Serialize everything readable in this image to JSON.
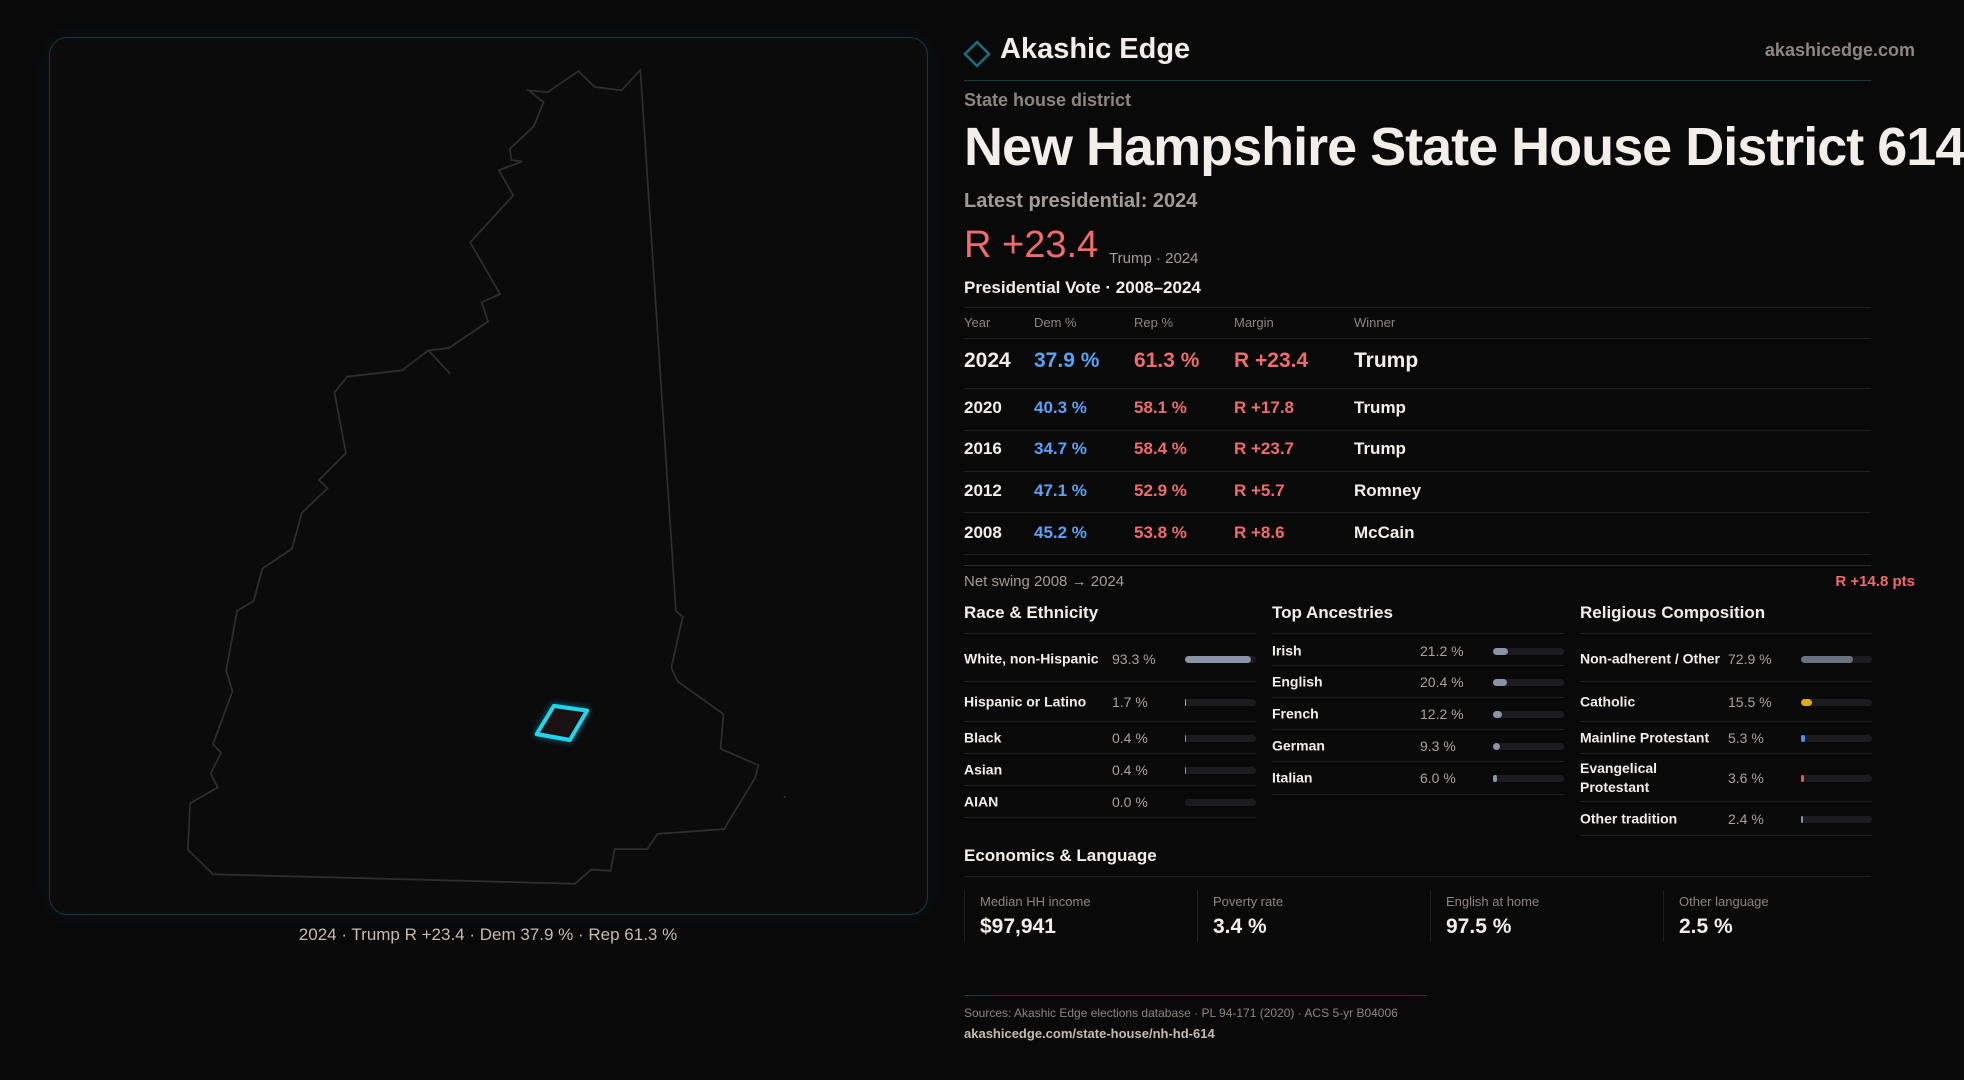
{
  "brand": {
    "name": "Akashic Edge",
    "site": "akashicedge.com",
    "accent": "#1fd6ee"
  },
  "header": {
    "kicker": "State house district",
    "title": "New Hampshire State House District 614",
    "latest_label": "Latest presidential: 2024",
    "margin": "R +23.4",
    "margin_note": "Trump · 2024"
  },
  "map": {
    "caption": "2024 · Trump R +23.4 · Dem 37.9 % · Rep 61.3 %",
    "highlight_color": "#1fd6ee"
  },
  "table": {
    "title": "Presidential Vote · 2008–2024",
    "headers": [
      "Year",
      "Dem %",
      "Rep %",
      "Margin",
      "Winner"
    ],
    "rows": [
      {
        "year": "2024",
        "dem": "37.9 %",
        "rep": "61.3 %",
        "margin": "R +23.4",
        "winner": "Trump"
      },
      {
        "year": "2020",
        "dem": "40.3 %",
        "rep": "58.1 %",
        "margin": "R +17.8",
        "winner": "Trump"
      },
      {
        "year": "2016",
        "dem": "34.7 %",
        "rep": "58.4 %",
        "margin": "R +23.7",
        "winner": "Trump"
      },
      {
        "year": "2012",
        "dem": "47.1 %",
        "rep": "52.9 %",
        "margin": "R +5.7",
        "winner": "Romney"
      },
      {
        "year": "2008",
        "dem": "45.2 %",
        "rep": "53.8 %",
        "margin": "R +8.6",
        "winner": "McCain"
      }
    ],
    "swing_label": "Net swing 2008 → 2024",
    "swing_value": "R +14.8 pts"
  },
  "race": {
    "title": "Race & Ethnicity",
    "items": [
      {
        "label": "White, non-Hispanic",
        "value": "93.3 %",
        "pct": 93.3,
        "color": "#8a94a6"
      },
      {
        "label": "Hispanic or Latino",
        "value": "1.7 %",
        "pct": 1.7,
        "color": "#e0a81c"
      },
      {
        "label": "Black",
        "value": "0.4 %",
        "pct": 0.4,
        "color": "#8a94a6"
      },
      {
        "label": "Asian",
        "value": "0.4 %",
        "pct": 0.4,
        "color": "#8a94a6"
      },
      {
        "label": "AIAN",
        "value": "0.0 %",
        "pct": 0.0,
        "color": "#8a94a6"
      }
    ]
  },
  "ancestry": {
    "title": "Top Ancestries",
    "items": [
      {
        "label": "Irish",
        "value": "21.2 %",
        "pct": 21.2,
        "color": "#8a94a6"
      },
      {
        "label": "English",
        "value": "20.4 %",
        "pct": 20.4,
        "color": "#8a94a6"
      },
      {
        "label": "French",
        "value": "12.2 %",
        "pct": 12.2,
        "color": "#8a94a6"
      },
      {
        "label": "German",
        "value": "9.3 %",
        "pct": 9.3,
        "color": "#8a94a6"
      },
      {
        "label": "Italian",
        "value": "6.0 %",
        "pct": 6.0,
        "color": "#8a94a6"
      }
    ]
  },
  "religion": {
    "title": "Religious Composition",
    "items": [
      {
        "label": "Non-adherent / Other",
        "value": "72.9 %",
        "pct": 72.9,
        "color": "#6b7280"
      },
      {
        "label": "Catholic",
        "value": "15.5 %",
        "pct": 15.5,
        "color": "#e0a81c"
      },
      {
        "label": "Mainline Protestant",
        "value": "5.3 %",
        "pct": 5.3,
        "color": "#5b8def"
      },
      {
        "label": "Evangelical Protestant",
        "value": "3.6 %",
        "pct": 3.6,
        "color": "#e05a5a"
      },
      {
        "label": "Other tradition",
        "value": "2.4 %",
        "pct": 2.4,
        "color": "#8a94a6"
      }
    ]
  },
  "economics": {
    "title": "Economics & Language",
    "cards": [
      {
        "label": "Median HH income",
        "value": "$97,941"
      },
      {
        "label": "Poverty rate",
        "value": "3.4 %"
      },
      {
        "label": "English at home",
        "value": "97.5 %"
      },
      {
        "label": "Other language",
        "value": "2.5 %"
      }
    ]
  },
  "footer": {
    "sources": "Sources: Akashic Edge elections database · PL 94-171 (2020) · ACS 5-yr B04006",
    "url": "akashicedge.com/state-house/nh-hd-614"
  }
}
